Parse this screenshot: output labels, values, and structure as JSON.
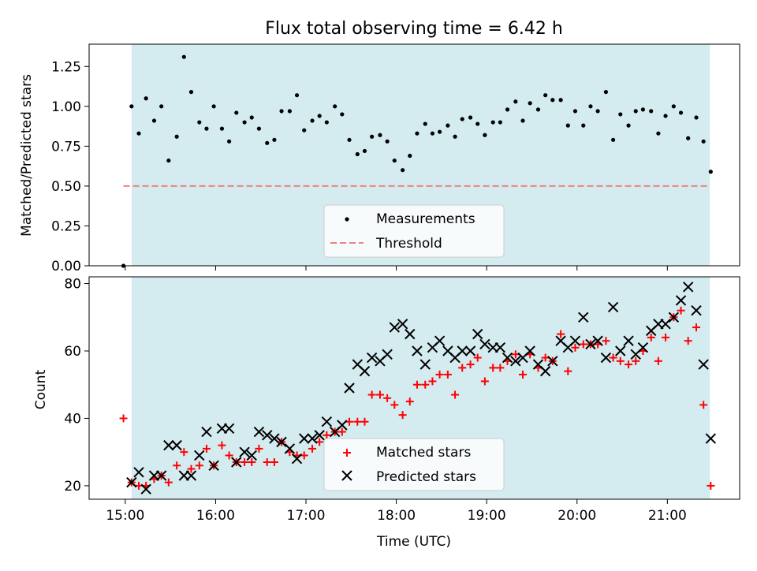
{
  "chart_data": [
    {
      "type": "scatter",
      "title": "Flux total observing time = 6.42 h",
      "ylabel": "Matched/Predicted stars",
      "xlabel": "",
      "x_ticks": [
        "15:00",
        "16:00",
        "17:00",
        "18:00",
        "19:00",
        "20:00",
        "21:00"
      ],
      "x_tick_labels_visible": false,
      "y_ticks": [
        "0.00",
        "0.25",
        "0.50",
        "0.75",
        "1.00",
        "1.25"
      ],
      "xlim": [
        14.6,
        21.8
      ],
      "ylim": [
        0.0,
        1.39
      ],
      "shaded_span": [
        15.07,
        21.47
      ],
      "shade_color": "#d4ebf0",
      "threshold": {
        "name": "Threshold",
        "value": 0.5,
        "x_range": [
          14.98,
          21.47
        ],
        "color": "#f08080"
      },
      "legend": {
        "location": "lower-center",
        "entries": [
          "Measurements",
          "Threshold"
        ]
      },
      "series": [
        {
          "name": "Measurements",
          "marker": "dot",
          "color": "#000000",
          "points": [
            [
              14.98,
              0.0
            ],
            [
              15.07,
              1.0
            ],
            [
              15.15,
              0.83
            ],
            [
              15.23,
              1.05
            ],
            [
              15.32,
              0.91
            ],
            [
              15.4,
              1.0
            ],
            [
              15.48,
              0.66
            ],
            [
              15.57,
              0.81
            ],
            [
              15.65,
              1.31
            ],
            [
              15.73,
              1.09
            ],
            [
              15.82,
              0.9
            ],
            [
              15.9,
              0.86
            ],
            [
              15.98,
              1.0
            ],
            [
              16.07,
              0.86
            ],
            [
              16.15,
              0.78
            ],
            [
              16.23,
              0.96
            ],
            [
              16.32,
              0.9
            ],
            [
              16.4,
              0.93
            ],
            [
              16.48,
              0.86
            ],
            [
              16.57,
              0.77
            ],
            [
              16.65,
              0.79
            ],
            [
              16.73,
              0.97
            ],
            [
              16.82,
              0.97
            ],
            [
              16.9,
              1.07
            ],
            [
              16.98,
              0.85
            ],
            [
              17.07,
              0.91
            ],
            [
              17.15,
              0.94
            ],
            [
              17.23,
              0.9
            ],
            [
              17.32,
              1.0
            ],
            [
              17.4,
              0.95
            ],
            [
              17.48,
              0.79
            ],
            [
              17.57,
              0.7
            ],
            [
              17.65,
              0.72
            ],
            [
              17.73,
              0.81
            ],
            [
              17.82,
              0.82
            ],
            [
              17.9,
              0.78
            ],
            [
              17.98,
              0.66
            ],
            [
              18.07,
              0.6
            ],
            [
              18.15,
              0.69
            ],
            [
              18.23,
              0.83
            ],
            [
              18.32,
              0.89
            ],
            [
              18.4,
              0.83
            ],
            [
              18.48,
              0.84
            ],
            [
              18.57,
              0.88
            ],
            [
              18.65,
              0.81
            ],
            [
              18.73,
              0.92
            ],
            [
              18.82,
              0.93
            ],
            [
              18.9,
              0.89
            ],
            [
              18.98,
              0.82
            ],
            [
              19.07,
              0.9
            ],
            [
              19.15,
              0.9
            ],
            [
              19.23,
              0.98
            ],
            [
              19.32,
              1.03
            ],
            [
              19.4,
              0.91
            ],
            [
              19.48,
              1.02
            ],
            [
              19.57,
              0.98
            ],
            [
              19.65,
              1.07
            ],
            [
              19.73,
              1.04
            ],
            [
              19.82,
              1.04
            ],
            [
              19.9,
              0.88
            ],
            [
              19.98,
              0.97
            ],
            [
              20.07,
              0.88
            ],
            [
              20.15,
              1.0
            ],
            [
              20.23,
              0.97
            ],
            [
              20.32,
              1.09
            ],
            [
              20.4,
              0.79
            ],
            [
              20.48,
              0.95
            ],
            [
              20.57,
              0.88
            ],
            [
              20.65,
              0.97
            ],
            [
              20.73,
              0.98
            ],
            [
              20.82,
              0.97
            ],
            [
              20.9,
              0.83
            ],
            [
              20.98,
              0.94
            ],
            [
              21.07,
              1.0
            ],
            [
              21.15,
              0.96
            ],
            [
              21.23,
              0.8
            ],
            [
              21.32,
              0.93
            ],
            [
              21.4,
              0.78
            ],
            [
              21.48,
              0.59
            ]
          ]
        }
      ]
    },
    {
      "type": "scatter",
      "title": "",
      "ylabel": "Count",
      "xlabel": "Time (UTC)",
      "x_ticks": [
        "15:00",
        "16:00",
        "17:00",
        "18:00",
        "19:00",
        "20:00",
        "21:00"
      ],
      "y_ticks": [
        "20",
        "40",
        "60",
        "80"
      ],
      "xlim": [
        14.6,
        21.8
      ],
      "ylim": [
        16,
        82
      ],
      "shaded_span": [
        15.07,
        21.47
      ],
      "shade_color": "#d4ebf0",
      "legend": {
        "location": "lower-center",
        "entries": [
          "Matched stars",
          "Predicted stars"
        ]
      },
      "series": [
        {
          "name": "Matched stars",
          "marker": "plus",
          "color": "#ff0000",
          "points": [
            [
              14.98,
              40
            ],
            [
              15.07,
              21
            ],
            [
              15.15,
              20
            ],
            [
              15.23,
              20
            ],
            [
              15.32,
              22
            ],
            [
              15.4,
              23
            ],
            [
              15.48,
              21
            ],
            [
              15.57,
              26
            ],
            [
              15.65,
              30
            ],
            [
              15.73,
              25
            ],
            [
              15.82,
              26
            ],
            [
              15.9,
              31
            ],
            [
              15.98,
              26
            ],
            [
              16.07,
              32
            ],
            [
              16.15,
              29
            ],
            [
              16.23,
              27
            ],
            [
              16.32,
              27
            ],
            [
              16.4,
              27
            ],
            [
              16.48,
              31
            ],
            [
              16.57,
              27
            ],
            [
              16.65,
              27
            ],
            [
              16.73,
              33
            ],
            [
              16.82,
              30
            ],
            [
              16.9,
              29
            ],
            [
              16.98,
              29
            ],
            [
              17.07,
              31
            ],
            [
              17.15,
              33
            ],
            [
              17.23,
              35
            ],
            [
              17.32,
              36
            ],
            [
              17.4,
              36
            ],
            [
              17.48,
              39
            ],
            [
              17.57,
              39
            ],
            [
              17.65,
              39
            ],
            [
              17.73,
              47
            ],
            [
              17.82,
              47
            ],
            [
              17.9,
              46
            ],
            [
              17.98,
              44
            ],
            [
              18.07,
              41
            ],
            [
              18.15,
              45
            ],
            [
              18.23,
              50
            ],
            [
              18.32,
              50
            ],
            [
              18.4,
              51
            ],
            [
              18.48,
              53
            ],
            [
              18.57,
              53
            ],
            [
              18.65,
              47
            ],
            [
              18.73,
              55
            ],
            [
              18.82,
              56
            ],
            [
              18.9,
              58
            ],
            [
              18.98,
              51
            ],
            [
              19.07,
              55
            ],
            [
              19.15,
              55
            ],
            [
              19.23,
              57
            ],
            [
              19.32,
              59
            ],
            [
              19.4,
              53
            ],
            [
              19.48,
              59
            ],
            [
              19.57,
              55
            ],
            [
              19.65,
              58
            ],
            [
              19.73,
              57
            ],
            [
              19.82,
              65
            ],
            [
              19.9,
              54
            ],
            [
              19.98,
              61
            ],
            [
              20.07,
              62
            ],
            [
              20.15,
              62
            ],
            [
              20.23,
              62
            ],
            [
              20.32,
              63
            ],
            [
              20.4,
              58
            ],
            [
              20.48,
              57
            ],
            [
              20.57,
              56
            ],
            [
              20.65,
              57
            ],
            [
              20.73,
              60
            ],
            [
              20.82,
              64
            ],
            [
              20.9,
              57
            ],
            [
              20.98,
              64
            ],
            [
              21.07,
              70
            ],
            [
              21.15,
              72
            ],
            [
              21.23,
              63
            ],
            [
              21.32,
              67
            ],
            [
              21.4,
              44
            ],
            [
              21.48,
              20
            ]
          ]
        },
        {
          "name": "Predicted stars",
          "marker": "x",
          "color": "#000000",
          "points": [
            [
              15.07,
              21
            ],
            [
              15.15,
              24
            ],
            [
              15.23,
              19
            ],
            [
              15.32,
              23
            ],
            [
              15.4,
              23
            ],
            [
              15.48,
              32
            ],
            [
              15.57,
              32
            ],
            [
              15.65,
              23
            ],
            [
              15.73,
              23
            ],
            [
              15.82,
              29
            ],
            [
              15.9,
              36
            ],
            [
              15.98,
              26
            ],
            [
              16.07,
              37
            ],
            [
              16.15,
              37
            ],
            [
              16.23,
              27
            ],
            [
              16.32,
              30
            ],
            [
              16.4,
              29
            ],
            [
              16.48,
              36
            ],
            [
              16.57,
              35
            ],
            [
              16.65,
              34
            ],
            [
              16.73,
              33
            ],
            [
              16.82,
              31
            ],
            [
              16.9,
              28
            ],
            [
              16.98,
              34
            ],
            [
              17.07,
              34
            ],
            [
              17.15,
              35
            ],
            [
              17.23,
              39
            ],
            [
              17.32,
              36
            ],
            [
              17.4,
              38
            ],
            [
              17.48,
              49
            ],
            [
              17.57,
              56
            ],
            [
              17.65,
              54
            ],
            [
              17.73,
              58
            ],
            [
              17.82,
              57
            ],
            [
              17.9,
              59
            ],
            [
              17.98,
              67
            ],
            [
              18.07,
              68
            ],
            [
              18.15,
              65
            ],
            [
              18.23,
              60
            ],
            [
              18.32,
              56
            ],
            [
              18.4,
              61
            ],
            [
              18.48,
              63
            ],
            [
              18.57,
              60
            ],
            [
              18.65,
              58
            ],
            [
              18.73,
              60
            ],
            [
              18.82,
              60
            ],
            [
              18.9,
              65
            ],
            [
              18.98,
              62
            ],
            [
              19.07,
              61
            ],
            [
              19.15,
              61
            ],
            [
              19.23,
              58
            ],
            [
              19.32,
              57
            ],
            [
              19.4,
              58
            ],
            [
              19.48,
              60
            ],
            [
              19.57,
              56
            ],
            [
              19.65,
              54
            ],
            [
              19.73,
              57
            ],
            [
              19.82,
              63
            ],
            [
              19.9,
              61
            ],
            [
              19.98,
              63
            ],
            [
              20.07,
              70
            ],
            [
              20.15,
              62
            ],
            [
              20.23,
              63
            ],
            [
              20.32,
              58
            ],
            [
              20.4,
              73
            ],
            [
              20.48,
              60
            ],
            [
              20.57,
              63
            ],
            [
              20.65,
              59
            ],
            [
              20.73,
              61
            ],
            [
              20.82,
              66
            ],
            [
              20.9,
              68
            ],
            [
              20.98,
              68
            ],
            [
              21.07,
              70
            ],
            [
              21.15,
              75
            ],
            [
              21.23,
              79
            ],
            [
              21.32,
              72
            ],
            [
              21.4,
              56
            ],
            [
              21.48,
              34
            ]
          ]
        }
      ]
    }
  ]
}
